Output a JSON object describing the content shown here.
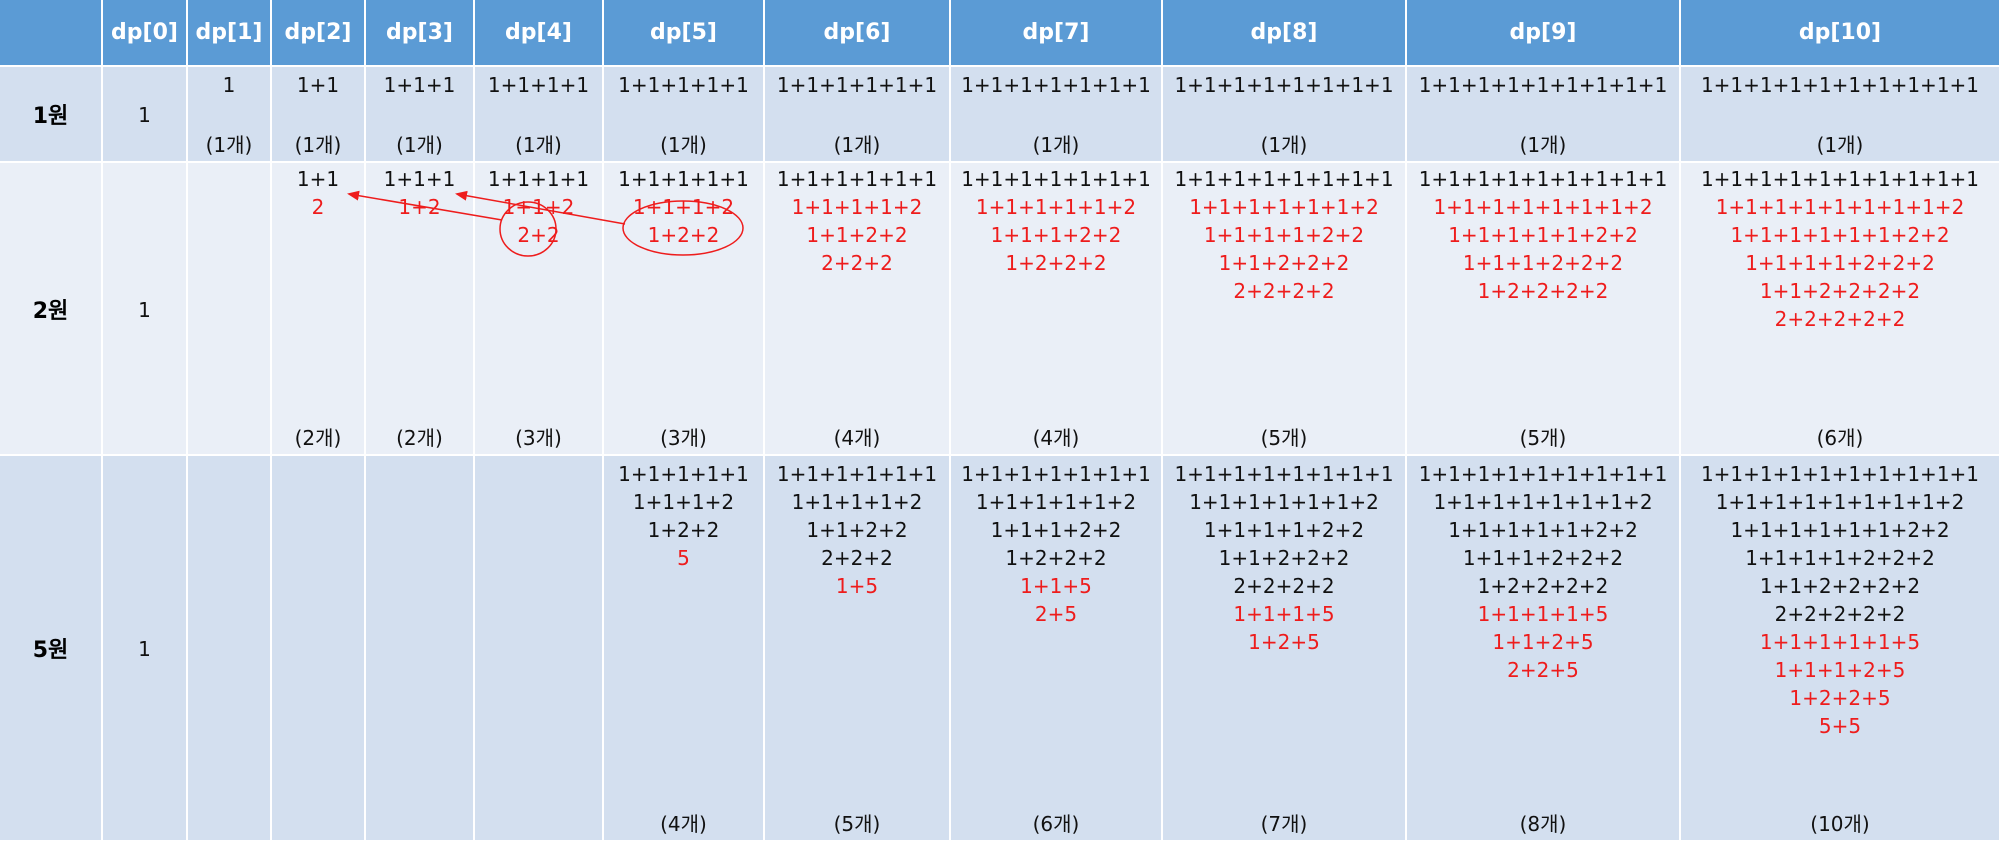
{
  "headers": [
    "",
    "dp[0]",
    "dp[1]",
    "dp[2]",
    "dp[3]",
    "dp[4]",
    "dp[5]",
    "dp[6]",
    "dp[7]",
    "dp[8]",
    "dp[9]",
    "dp[10]"
  ],
  "rows": [
    {
      "label": "1원",
      "cells": [
        {
          "black": [
            "1"
          ],
          "red": [],
          "count": ""
        },
        {
          "black": [
            "1"
          ],
          "red": [],
          "count": "(1개)"
        },
        {
          "black": [
            "1+1"
          ],
          "red": [],
          "count": "(1개)"
        },
        {
          "black": [
            "1+1+1"
          ],
          "red": [],
          "count": "(1개)"
        },
        {
          "black": [
            "1+1+1+1"
          ],
          "red": [],
          "count": "(1개)"
        },
        {
          "black": [
            "1+1+1+1+1"
          ],
          "red": [],
          "count": "(1개)"
        },
        {
          "black": [
            "1+1+1+1+1+1"
          ],
          "red": [],
          "count": "(1개)"
        },
        {
          "black": [
            "1+1+1+1+1+1+1"
          ],
          "red": [],
          "count": "(1개)"
        },
        {
          "black": [
            "1+1+1+1+1+1+1+1"
          ],
          "red": [],
          "count": "(1개)"
        },
        {
          "black": [
            "1+1+1+1+1+1+1+1+1"
          ],
          "red": [],
          "count": "(1개)"
        },
        {
          "black": [
            "1+1+1+1+1+1+1+1+1+1"
          ],
          "red": [],
          "count": "(1개)"
        }
      ]
    },
    {
      "label": "2원",
      "cells": [
        {
          "black": [
            "1"
          ],
          "red": [],
          "count": ""
        },
        {
          "black": [],
          "red": [],
          "count": ""
        },
        {
          "black": [
            "1+1"
          ],
          "red": [
            "2"
          ],
          "count": "(2개)"
        },
        {
          "black": [
            "1+1+1"
          ],
          "red": [
            "1+2"
          ],
          "count": "(2개)"
        },
        {
          "black": [
            "1+1+1+1"
          ],
          "red": [
            "1+1+2",
            "2+2"
          ],
          "count": "(3개)"
        },
        {
          "black": [
            "1+1+1+1+1"
          ],
          "red": [
            "1+1+1+2",
            "1+2+2"
          ],
          "count": "(3개)"
        },
        {
          "black": [
            "1+1+1+1+1+1"
          ],
          "red": [
            "1+1+1+1+2",
            "1+1+2+2",
            "2+2+2"
          ],
          "count": "(4개)"
        },
        {
          "black": [
            "1+1+1+1+1+1+1"
          ],
          "red": [
            "1+1+1+1+1+2",
            "1+1+1+2+2",
            "1+2+2+2"
          ],
          "count": "(4개)"
        },
        {
          "black": [
            "1+1+1+1+1+1+1+1"
          ],
          "red": [
            "1+1+1+1+1+1+2",
            "1+1+1+1+2+2",
            "1+1+2+2+2",
            "2+2+2+2"
          ],
          "count": "(5개)"
        },
        {
          "black": [
            "1+1+1+1+1+1+1+1+1"
          ],
          "red": [
            "1+1+1+1+1+1+1+2",
            "1+1+1+1+1+2+2",
            "1+1+1+2+2+2",
            "1+2+2+2+2"
          ],
          "count": "(5개)"
        },
        {
          "black": [
            "1+1+1+1+1+1+1+1+1+1"
          ],
          "red": [
            "1+1+1+1+1+1+1+1+2",
            "1+1+1+1+1+1+2+2",
            "1+1+1+1+2+2+2",
            "1+1+2+2+2+2",
            "2+2+2+2+2"
          ],
          "count": "(6개)"
        }
      ]
    },
    {
      "label": "5원",
      "cells": [
        {
          "black": [
            "1"
          ],
          "red": [],
          "count": ""
        },
        {
          "black": [],
          "red": [],
          "count": ""
        },
        {
          "black": [],
          "red": [],
          "count": ""
        },
        {
          "black": [],
          "red": [],
          "count": ""
        },
        {
          "black": [],
          "red": [],
          "count": ""
        },
        {
          "black": [
            "1+1+1+1+1",
            "1+1+1+2",
            "1+2+2"
          ],
          "red": [
            "5"
          ],
          "count": "(4개)"
        },
        {
          "black": [
            "1+1+1+1+1+1",
            "1+1+1+1+2",
            "1+1+2+2",
            "2+2+2"
          ],
          "red": [
            "1+5"
          ],
          "count": "(5개)"
        },
        {
          "black": [
            "1+1+1+1+1+1+1",
            "1+1+1+1+1+2",
            "1+1+1+2+2",
            "1+2+2+2"
          ],
          "red": [
            "1+1+5",
            "2+5"
          ],
          "count": "(6개)"
        },
        {
          "black": [
            "1+1+1+1+1+1+1+1",
            "1+1+1+1+1+1+2",
            "1+1+1+1+2+2",
            "1+1+2+2+2",
            "2+2+2+2"
          ],
          "red": [
            "1+1+1+5",
            "1+2+5"
          ],
          "count": "(7개)"
        },
        {
          "black": [
            "1+1+1+1+1+1+1+1+1",
            "1+1+1+1+1+1+1+2",
            "1+1+1+1+1+2+2",
            "1+1+1+2+2+2",
            "1+2+2+2+2"
          ],
          "red": [
            "1+1+1+1+5",
            "1+1+2+5",
            "2+2+5"
          ],
          "count": "(8개)"
        },
        {
          "black": [
            "1+1+1+1+1+1+1+1+1+1",
            "1+1+1+1+1+1+1+1+2",
            "1+1+1+1+1+1+2+2",
            "1+1+1+1+2+2+2",
            "1+1+2+2+2+2",
            "2+2+2+2+2"
          ],
          "red": [
            "1+1+1+1+1+5",
            "1+1+1+2+5",
            "1+2+2+5",
            "5+5"
          ],
          "count": "(10개)"
        }
      ]
    }
  ],
  "colors": {
    "header": "#5b9bd5",
    "row_dark": "#d3dfef",
    "row_light": "#eaeff7",
    "highlight": "#ee1c1c"
  }
}
